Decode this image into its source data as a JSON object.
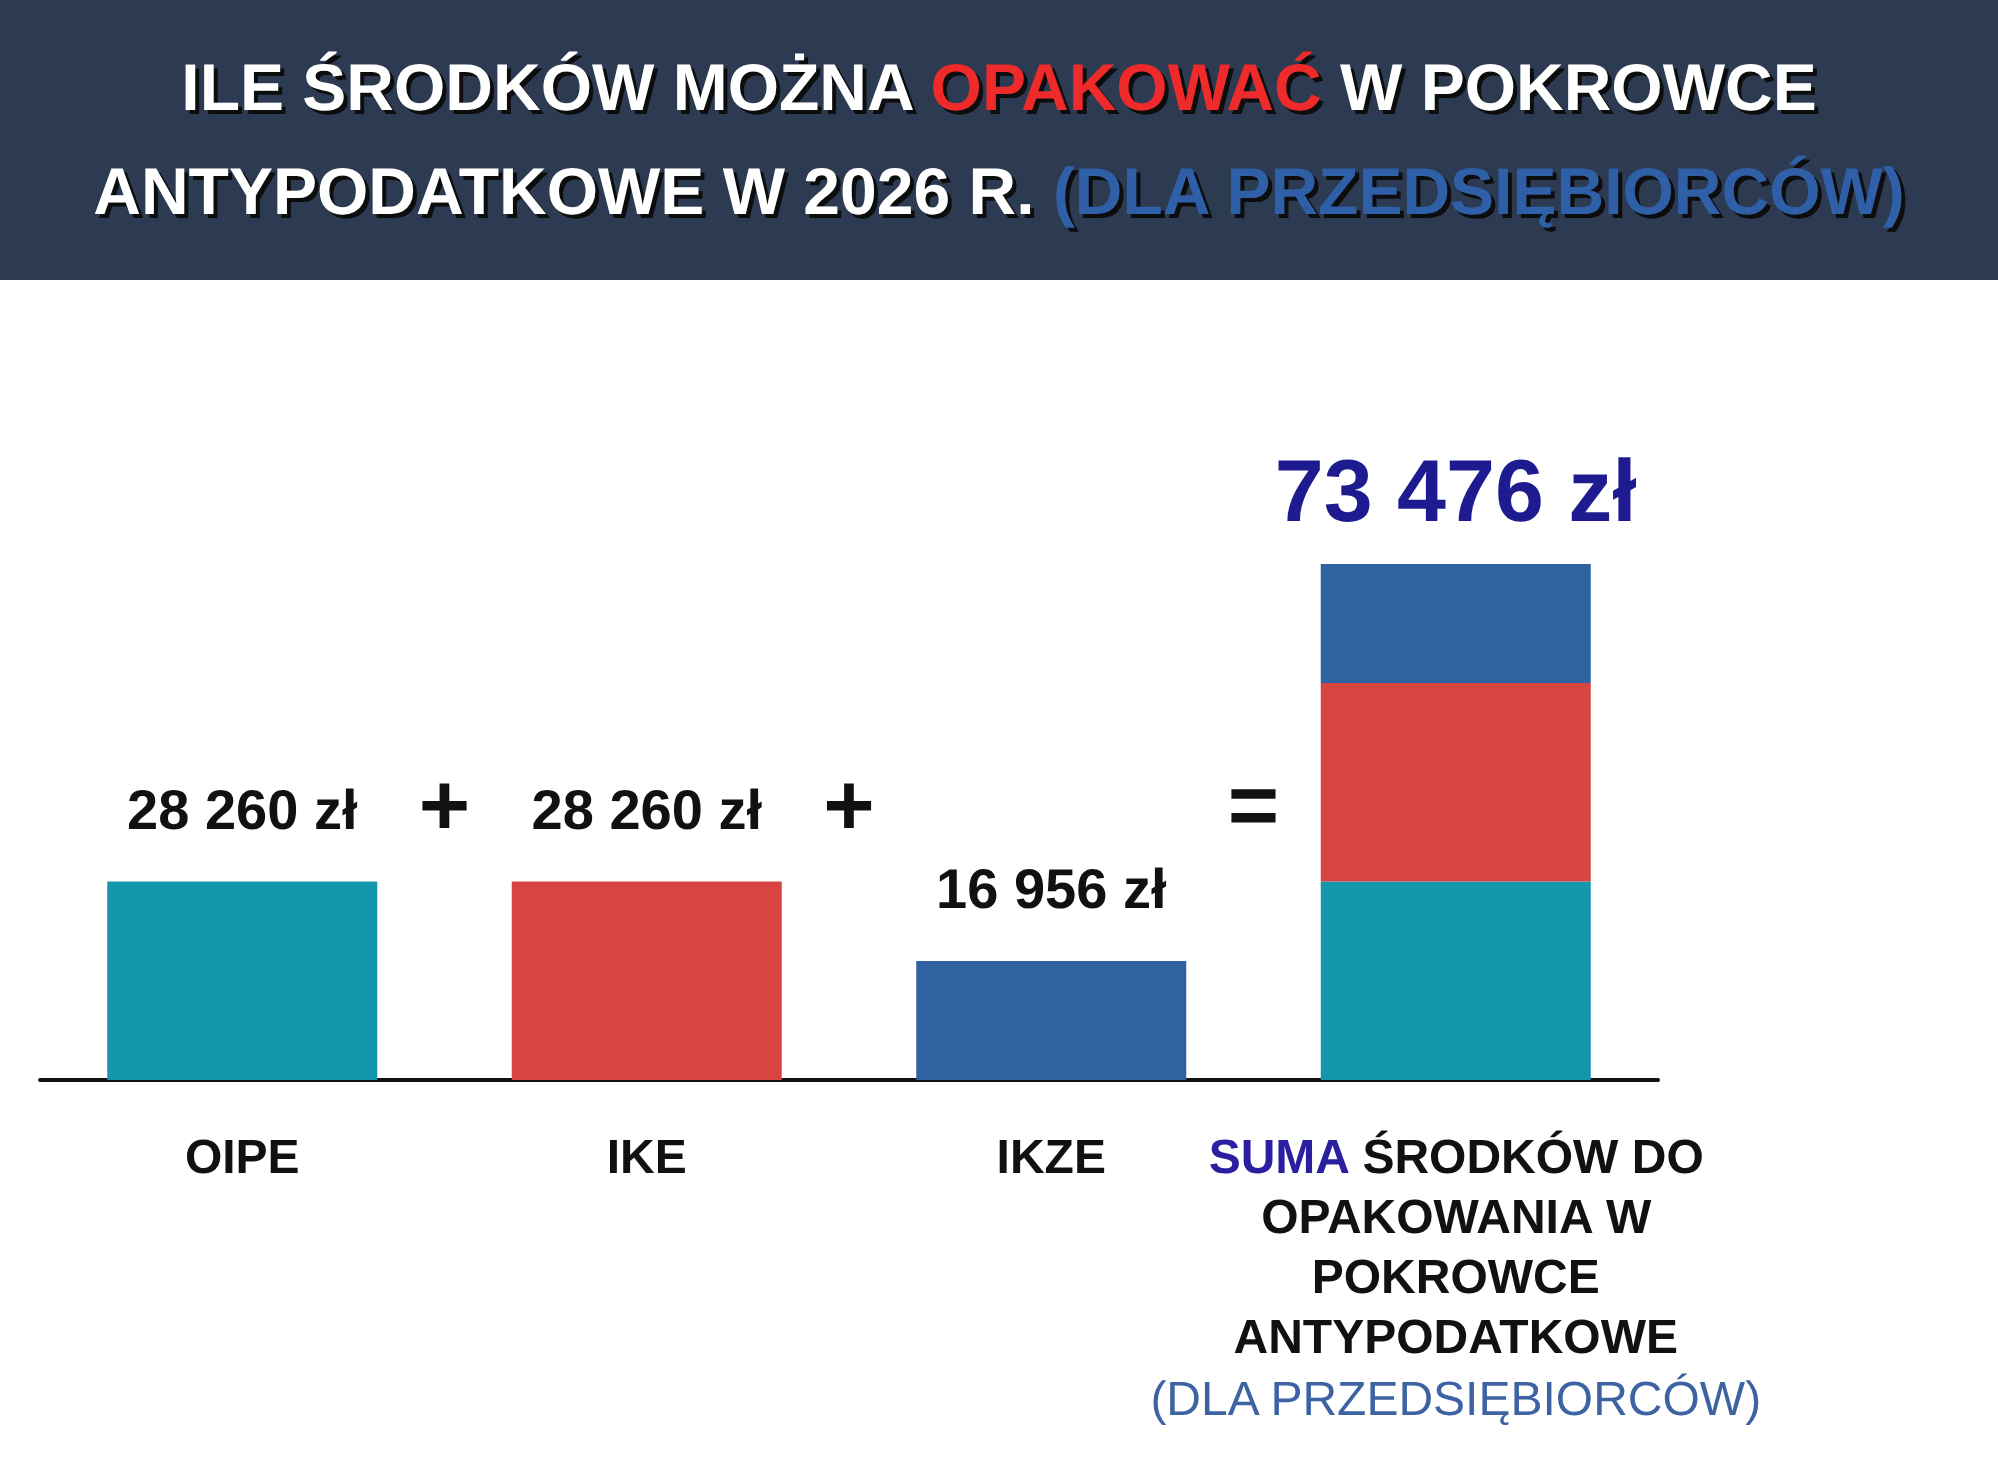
{
  "chart_data": {
    "type": "bar",
    "title": "ILE ŚRODKÓW MOŻNA OPAKOWAĆ W POKROWCE ANTYPODATKOWE W 2026 R. (DLA PRZEDSIĘBIORCÓW)",
    "categories": [
      "OIPE",
      "IKE",
      "IKZE",
      "SUMA ŚRODKÓW DO OPAKOWANIA W POKROWCE ANTYPODATKOWE (DLA PRZEDSIĘBIORCÓW)"
    ],
    "stacked": true,
    "series": [
      {
        "color": "#1597ab",
        "values": [
          28260,
          null,
          null,
          28260
        ],
        "value_labels": [
          "28 260 zł",
          null,
          null,
          null
        ]
      },
      {
        "color": "#d84440",
        "values": [
          null,
          28260,
          null,
          28260
        ],
        "value_labels": [
          null,
          "28 260 zł",
          null,
          null
        ]
      },
      {
        "color": "#2e62a0",
        "values": [
          null,
          null,
          16956,
          16956
        ],
        "value_labels": [
          null,
          null,
          "16 956 zł",
          null
        ]
      }
    ],
    "totals": [
      null,
      null,
      null,
      "73 476 zł"
    ],
    "annotations": [
      "+",
      "+",
      "="
    ]
  }
}
